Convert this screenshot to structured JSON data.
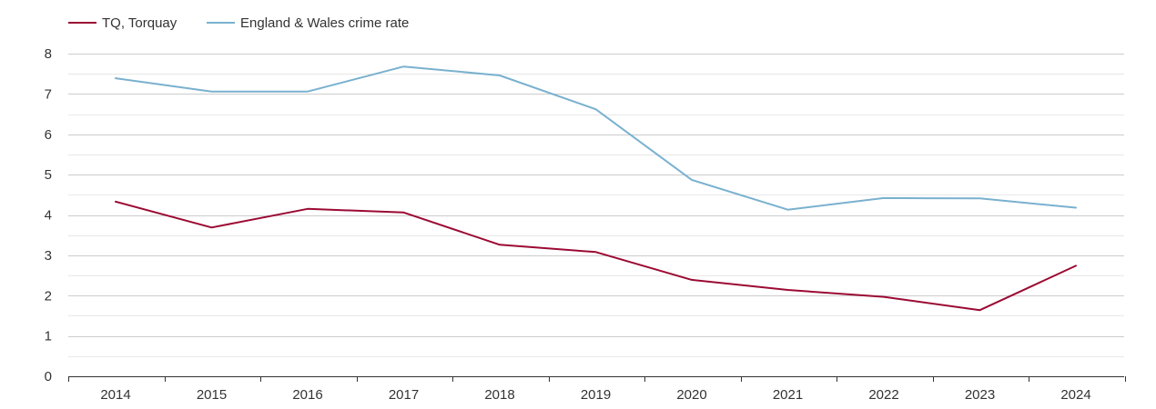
{
  "chart_data": {
    "type": "line",
    "title": "",
    "xlabel": "",
    "ylabel": "",
    "categories": [
      "2014",
      "2015",
      "2016",
      "2017",
      "2018",
      "2019",
      "2020",
      "2021",
      "2022",
      "2023",
      "2024"
    ],
    "ylim": [
      0,
      8
    ],
    "y_ticks": [
      "0",
      "1",
      "2",
      "3",
      "4",
      "5",
      "6",
      "7",
      "8"
    ],
    "grid": true,
    "legend_position": "top-left",
    "series": [
      {
        "name": "TQ, Torquay",
        "color": "#9b0a33",
        "values": [
          4.33,
          3.69,
          4.15,
          4.06,
          3.26,
          3.08,
          2.39,
          2.14,
          1.97,
          1.64,
          2.74
        ]
      },
      {
        "name": "England & Wales crime rate",
        "color": "#79b1cf",
        "values": [
          7.39,
          7.06,
          7.06,
          7.68,
          7.46,
          6.62,
          4.87,
          4.13,
          4.42,
          4.41,
          4.18
        ]
      }
    ]
  }
}
